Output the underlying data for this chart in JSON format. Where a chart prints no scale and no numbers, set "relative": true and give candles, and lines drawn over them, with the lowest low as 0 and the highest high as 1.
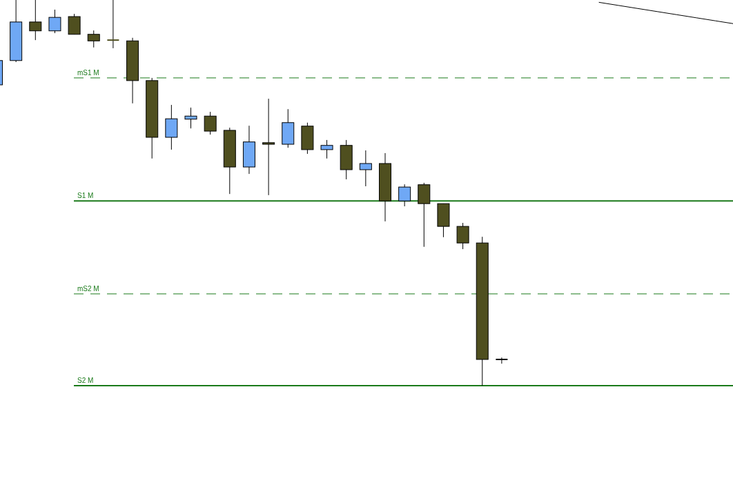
{
  "chart_data": {
    "type": "candlestick",
    "relative": true,
    "categories": [
      null,
      null,
      null,
      null,
      null,
      null,
      null,
      null,
      null,
      null,
      null,
      null,
      null,
      null,
      null,
      null,
      null,
      null,
      null,
      null,
      null,
      null,
      null,
      null,
      null,
      null,
      null,
      null,
      null,
      null,
      null,
      null,
      null,
      null,
      null,
      null,
      null,
      null,
      null
    ],
    "ohlc": [
      [
        0.78,
        0.843,
        0.78,
        0.843
      ],
      [
        0.843,
        1,
        0.839,
        0.943
      ],
      [
        0.943,
        1,
        0.896,
        0.92
      ],
      [
        0.92,
        0.975,
        0.914,
        0.955
      ],
      [
        0.957,
        0.964,
        0.911,
        0.911
      ],
      [
        0.911,
        0.921,
        0.877,
        0.894
      ],
      [
        0.896,
        1,
        0.875,
        0.894
      ],
      [
        0.894,
        0.902,
        0.732,
        0.791
      ],
      [
        0.791,
        0.798,
        0.589,
        0.644
      ],
      [
        0.644,
        0.728,
        0.612,
        0.692
      ],
      [
        0.691,
        0.721,
        0.667,
        0.699
      ],
      [
        0.699,
        0.71,
        0.651,
        0.66
      ],
      [
        0.662,
        0.669,
        0.497,
        0.567
      ],
      [
        0.567,
        0.674,
        0.549,
        0.632
      ],
      [
        0.63,
        0.744,
        0.494,
        0.626
      ],
      [
        0.626,
        0.717,
        0.617,
        0.682
      ],
      [
        0.673,
        0.682,
        0.601,
        0.612
      ],
      [
        0.612,
        0.637,
        0.589,
        0.623
      ],
      [
        0.623,
        0.637,
        0.535,
        0.56
      ],
      [
        0.56,
        0.61,
        0.517,
        0.576
      ],
      [
        0.576,
        0.603,
        0.426,
        0.479
      ],
      [
        0.479,
        0.522,
        0.465,
        0.515
      ],
      [
        0.521,
        0.526,
        0.36,
        0.472
      ],
      [
        0.472,
        0.472,
        0.385,
        0.413
      ],
      [
        0.413,
        0.422,
        0.354,
        0.37
      ],
      [
        0.37,
        0.386,
        0,
        0.068
      ],
      [
        0.068,
        0.073,
        0.057,
        0.068
      ],
      null,
      null,
      null,
      null,
      null,
      null,
      null,
      null,
      null,
      null,
      null,
      null
    ],
    "colors": [
      "#6fa8f5",
      "#6fa8f5",
      "#4f4f1f",
      "#6fa8f5",
      "#4f4f1f",
      "#4f4f1f",
      "#4f4f1f",
      "#4f4f1f",
      "#4f4f1f",
      "#6fa8f5",
      "#6fa8f5",
      "#4f4f1f",
      "#4f4f1f",
      "#6fa8f5",
      "#4f4f1f",
      "#6fa8f5",
      "#4f4f1f",
      "#6fa8f5",
      "#4f4f1f",
      "#6fa8f5",
      "#4f4f1f",
      "#6fa8f5",
      "#4f4f1f",
      "#4f4f1f",
      "#4f4f1f",
      "#4f4f1f",
      "#000000",
      null,
      null,
      null,
      null,
      null,
      null,
      null,
      null,
      null,
      null,
      null,
      null
    ],
    "series": [
      {
        "type": "line",
        "values": [
          null,
          null,
          null,
          null,
          null,
          null,
          null,
          null,
          null,
          null,
          null,
          null,
          null,
          null,
          null,
          null,
          null,
          null,
          null,
          null,
          null,
          null,
          null,
          null,
          null,
          null,
          null,
          null,
          null,
          null,
          null,
          0.994,
          0.986,
          0.978,
          0.97,
          0.962,
          0.954,
          0.946,
          0.938
        ],
        "color": "#000000"
      }
    ],
    "ref_lines": [
      {
        "axis": "y",
        "value": 0.798,
        "label": "mS1 M",
        "color": "#1a7a1a",
        "line_style": "dashed"
      },
      {
        "axis": "y",
        "value": 0.479,
        "label": "S1 M",
        "color": "#1a7a1a",
        "line_style": "solid"
      },
      {
        "axis": "y",
        "value": 0.238,
        "label": "mS2 M",
        "color": "#1a7a1a",
        "line_style": "dashed"
      },
      {
        "axis": "y",
        "value": 0,
        "label": "S2 M",
        "color": "#1a7a1a",
        "line_style": "solid"
      }
    ]
  }
}
